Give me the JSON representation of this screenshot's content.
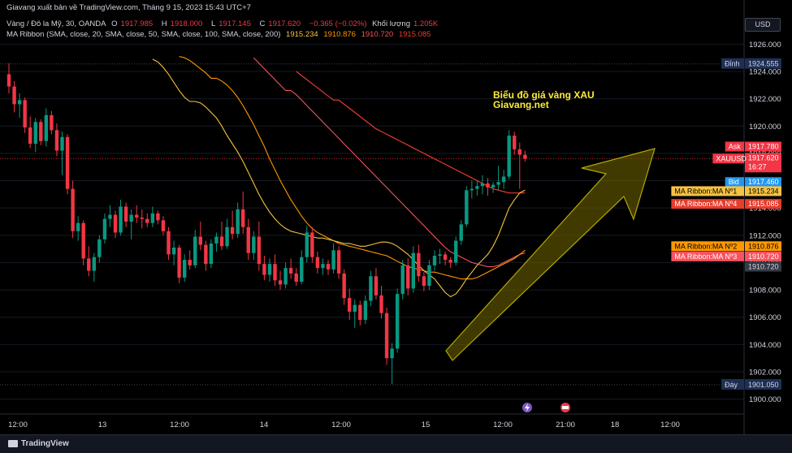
{
  "header": {
    "attribution": "Giavang xuất bản về TradingView.com, Tháng 9 15, 2023 15:43 UTC+7",
    "symbol": "Vàng / Đô la Mỹ, 30, OANDA",
    "o_label": "O",
    "o_value": "1917.985",
    "h_label": "H",
    "h_value": "1918.000",
    "l_label": "L",
    "l_value": "1917.145",
    "c_label": "C",
    "c_value": "1917.620",
    "change": "−0.365 (−0.02%)",
    "volume_label": "Khối lượng",
    "volume_value": "1.205K",
    "ribbon_label": "MA Ribbon (SMA, close, 20, SMA, close, 50, SMA, close, 100, SMA, close, 200)",
    "ribbon_values": [
      "1915.234",
      "1910.876",
      "1910.720",
      "1915.085"
    ]
  },
  "currency_button": "USD",
  "annotation": {
    "line1": "Biểu đồ giá vàng XAU",
    "line2": "Giavang.net"
  },
  "footer": {
    "brand": "TradingView"
  },
  "colors": {
    "up": "#089981",
    "down": "#f23645",
    "ma20": "#f6c343",
    "ma50": "#ff9800",
    "ma100": "#f7525f",
    "ma200": "#e83c2c",
    "arrow_fill": "#6b6000",
    "arrow_stroke": "#b5a800",
    "annotation": "#ffeb3b",
    "bid": "#2196f3",
    "ask": "#f23645"
  },
  "chart_data": {
    "type": "candlestick",
    "ylim": [
      1899.5,
      1926.5
    ],
    "y_ticks": [
      1900,
      1902,
      1904,
      1906,
      1908,
      1910,
      1912,
      1914,
      1916,
      1918,
      1920,
      1922,
      1924,
      1926
    ],
    "x_ticks": [
      "12:00",
      "13",
      "12:00",
      "14",
      "12:00",
      "15",
      "12:00",
      "21:00",
      "18",
      "12:00"
    ],
    "markers": [
      {
        "label": "Đỉnh",
        "value": "1924.555",
        "y": 1924.555
      },
      {
        "label": "Đáy",
        "value": "1901.050",
        "y": 1901.05
      }
    ],
    "price_labels": [
      {
        "label": "Ask",
        "value": "1917.780",
        "y": 1918.5,
        "kind": "ask"
      },
      {
        "label": "XAUUSD",
        "value": "1917.620",
        "y": 1917.62,
        "kind": "last",
        "sub": "16:27"
      },
      {
        "label": "Bid",
        "value": "1917.460",
        "y": 1915.9,
        "kind": "bid"
      },
      {
        "label": "MA Ribbon:MA Nº1",
        "value": "1915.234",
        "y": 1915.234,
        "kind": "ma20"
      },
      {
        "label": "MA Ribbon:MA Nº4",
        "value": "1915.085",
        "y": 1914.3,
        "kind": "ma200"
      },
      {
        "label": "MA Ribbon:MA Nº2",
        "value": "1910.876",
        "y": 1911.2,
        "kind": "ma50"
      },
      {
        "label": "MA Ribbon:MA Nº3",
        "value": "1910.720",
        "y": 1910.45,
        "kind": "ma100"
      },
      {
        "label": "",
        "value": "1910.720",
        "y": 1909.7,
        "kind": "plain"
      }
    ],
    "candles": [
      [
        1923.8,
        1924.6,
        1922.4,
        1922.9
      ],
      [
        1922.9,
        1923.3,
        1921.0,
        1921.6
      ],
      [
        1921.6,
        1922.4,
        1920.6,
        1921.9
      ],
      [
        1921.9,
        1922.1,
        1919.5,
        1919.9
      ],
      [
        1919.9,
        1920.7,
        1918.4,
        1918.7
      ],
      [
        1918.7,
        1920.6,
        1918.1,
        1920.3
      ],
      [
        1920.3,
        1920.5,
        1918.6,
        1918.9
      ],
      [
        1918.9,
        1921.3,
        1918.5,
        1920.8
      ],
      [
        1920.8,
        1921.1,
        1919.4,
        1919.7
      ],
      [
        1919.7,
        1920.2,
        1917.8,
        1918.2
      ],
      [
        1918.2,
        1919.6,
        1916.4,
        1919.2
      ],
      [
        1919.2,
        1919.4,
        1915.0,
        1915.4
      ],
      [
        1915.4,
        1916.0,
        1911.8,
        1912.3
      ],
      [
        1912.3,
        1913.4,
        1911.6,
        1912.9
      ],
      [
        1912.9,
        1913.1,
        1909.8,
        1910.3
      ],
      [
        1910.3,
        1911.2,
        1909.0,
        1909.4
      ],
      [
        1909.4,
        1910.7,
        1908.6,
        1910.4
      ],
      [
        1910.4,
        1912.0,
        1910.0,
        1911.7
      ],
      [
        1911.7,
        1913.6,
        1911.4,
        1913.2
      ],
      [
        1913.2,
        1914.2,
        1912.6,
        1913.5
      ],
      [
        1913.5,
        1913.8,
        1911.8,
        1912.2
      ],
      [
        1912.2,
        1914.6,
        1912.0,
        1914.1
      ],
      [
        1914.1,
        1914.4,
        1912.6,
        1913.0
      ],
      [
        1913.0,
        1913.9,
        1911.7,
        1913.5
      ],
      [
        1913.5,
        1914.2,
        1912.9,
        1913.3
      ],
      [
        1913.3,
        1913.9,
        1912.5,
        1913.2
      ],
      [
        1913.2,
        1913.6,
        1912.6,
        1912.9
      ],
      [
        1912.9,
        1914.1,
        1912.6,
        1913.6
      ],
      [
        1913.6,
        1913.8,
        1912.8,
        1913.1
      ],
      [
        1913.1,
        1913.4,
        1912.0,
        1912.3
      ],
      [
        1912.3,
        1912.6,
        1910.2,
        1910.6
      ],
      [
        1910.6,
        1911.6,
        1909.8,
        1911.1
      ],
      [
        1911.1,
        1911.3,
        1908.5,
        1908.9
      ],
      [
        1908.9,
        1910.6,
        1908.6,
        1910.2
      ],
      [
        1910.2,
        1910.9,
        1909.5,
        1909.8
      ],
      [
        1909.8,
        1912.4,
        1909.6,
        1911.9
      ],
      [
        1911.9,
        1913.0,
        1910.9,
        1911.3
      ],
      [
        1911.3,
        1911.6,
        1909.4,
        1909.9
      ],
      [
        1909.9,
        1911.7,
        1909.6,
        1911.4
      ],
      [
        1911.4,
        1912.2,
        1910.8,
        1911.9
      ],
      [
        1911.9,
        1913.0,
        1910.9,
        1911.2
      ],
      [
        1911.2,
        1913.2,
        1911.0,
        1912.6
      ],
      [
        1912.6,
        1913.8,
        1911.7,
        1912.1
      ],
      [
        1912.1,
        1914.4,
        1911.8,
        1913.9
      ],
      [
        1913.9,
        1915.2,
        1912.1,
        1912.6
      ],
      [
        1912.6,
        1913.2,
        1910.2,
        1910.7
      ],
      [
        1910.7,
        1912.3,
        1910.2,
        1911.9
      ],
      [
        1911.9,
        1913.0,
        1909.4,
        1909.9
      ],
      [
        1909.9,
        1910.5,
        1908.7,
        1909.1
      ],
      [
        1909.1,
        1910.3,
        1908.6,
        1909.9
      ],
      [
        1909.9,
        1910.6,
        1908.3,
        1908.7
      ],
      [
        1908.7,
        1909.4,
        1908.0,
        1908.4
      ],
      [
        1908.4,
        1910.0,
        1908.1,
        1909.6
      ],
      [
        1909.6,
        1910.3,
        1908.8,
        1909.2
      ],
      [
        1909.2,
        1909.6,
        1908.3,
        1908.6
      ],
      [
        1908.6,
        1910.9,
        1908.4,
        1910.4
      ],
      [
        1910.4,
        1912.7,
        1910.0,
        1912.2
      ],
      [
        1912.2,
        1912.6,
        1910.0,
        1910.4
      ],
      [
        1910.4,
        1910.8,
        1909.2,
        1909.6
      ],
      [
        1909.6,
        1910.3,
        1909.1,
        1909.9
      ],
      [
        1909.9,
        1910.2,
        1909.1,
        1909.5
      ],
      [
        1909.5,
        1911.4,
        1909.2,
        1910.9
      ],
      [
        1910.9,
        1911.2,
        1908.8,
        1909.2
      ],
      [
        1909.2,
        1909.5,
        1906.9,
        1907.4
      ],
      [
        1907.4,
        1908.1,
        1905.8,
        1906.4
      ],
      [
        1906.4,
        1907.3,
        1905.2,
        1906.9
      ],
      [
        1906.9,
        1907.2,
        1905.4,
        1905.8
      ],
      [
        1905.8,
        1907.6,
        1905.5,
        1907.2
      ],
      [
        1907.2,
        1909.4,
        1906.8,
        1909.0
      ],
      [
        1909.0,
        1909.6,
        1907.3,
        1907.6
      ],
      [
        1907.6,
        1908.3,
        1905.9,
        1906.3
      ],
      [
        1906.3,
        1906.7,
        1902.5,
        1903.0
      ],
      [
        1903.0,
        1904.1,
        1901.1,
        1903.7
      ],
      [
        1903.7,
        1908.1,
        1903.4,
        1907.7
      ],
      [
        1907.7,
        1910.2,
        1907.3,
        1909.8
      ],
      [
        1909.8,
        1910.3,
        1907.6,
        1908.1
      ],
      [
        1908.1,
        1911.2,
        1907.8,
        1910.7
      ],
      [
        1910.7,
        1911.3,
        1908.6,
        1909.0
      ],
      [
        1909.0,
        1909.3,
        1907.9,
        1908.3
      ],
      [
        1908.3,
        1910.2,
        1908.0,
        1909.8
      ],
      [
        1909.8,
        1910.9,
        1909.4,
        1910.5
      ],
      [
        1910.5,
        1911.0,
        1909.9,
        1910.6
      ],
      [
        1910.6,
        1910.8,
        1909.8,
        1910.2
      ],
      [
        1910.2,
        1910.4,
        1909.6,
        1910.0
      ],
      [
        1910.0,
        1911.9,
        1909.8,
        1911.6
      ],
      [
        1911.6,
        1913.1,
        1911.3,
        1912.8
      ],
      [
        1912.8,
        1915.6,
        1912.6,
        1915.3
      ],
      [
        1915.3,
        1916.0,
        1914.7,
        1915.4
      ],
      [
        1915.4,
        1916.0,
        1914.9,
        1915.6
      ],
      [
        1915.6,
        1916.4,
        1915.0,
        1915.8
      ],
      [
        1915.8,
        1916.2,
        1914.9,
        1915.5
      ],
      [
        1915.5,
        1915.9,
        1915.1,
        1915.7
      ],
      [
        1915.7,
        1917.1,
        1915.3,
        1915.9
      ],
      [
        1915.9,
        1916.8,
        1915.4,
        1916.3
      ],
      [
        1916.3,
        1919.7,
        1916.1,
        1919.3
      ],
      [
        1919.3,
        1919.6,
        1917.9,
        1918.3
      ],
      [
        1918.3,
        1918.8,
        1915.4,
        1917.9
      ],
      [
        1917.9,
        1918.2,
        1917.4,
        1917.6
      ]
    ],
    "ma20": [
      1921.8,
      1921.7,
      1921.4,
      1921.0,
      1920.6,
      1920.0,
      1919.3,
      1918.7,
      1918.1,
      1917.4,
      1916.6,
      1915.8,
      1915.0,
      1914.3,
      1913.7,
      1913.2,
      1912.8,
      1912.5,
      1912.3,
      1912.2,
      1912.1,
      1912.0,
      1911.9,
      1911.8,
      1911.8,
      1911.7,
      1911.6,
      1911.5,
      1911.4,
      1911.4,
      1911.3,
      1911.2,
      1911.2,
      1911.3,
      1911.4,
      1911.5,
      1911.5,
      1911.4,
      1911.2,
      1910.9,
      1910.6,
      1910.2,
      1909.8,
      1909.4,
      1909.1,
      1908.8,
      1908.3,
      1907.8,
      1907.5,
      1907.7,
      1908.2,
      1908.8,
      1909.3,
      1909.8,
      1910.2,
      1910.6,
      1911.2,
      1912.0,
      1913.0,
      1914.0,
      1914.6,
      1915.1,
      1915.3
    ],
    "ma20_start": 35,
    "ma50": [
      1923.5,
      1923.3,
      1923.0,
      1922.6,
      1922.1,
      1921.5,
      1920.8,
      1920.1,
      1919.3,
      1918.5,
      1917.6,
      1916.8,
      1916.0,
      1915.3,
      1914.6,
      1914.0,
      1913.4,
      1912.9,
      1912.5,
      1912.2,
      1912.0,
      1911.8,
      1911.6,
      1911.4,
      1911.3,
      1911.2,
      1911.1,
      1911.0,
      1910.9,
      1910.8,
      1910.7,
      1910.6,
      1910.5,
      1910.3,
      1910.1,
      1909.9,
      1909.7,
      1909.6,
      1909.5,
      1909.4,
      1909.3,
      1909.3,
      1909.2,
      1909.1,
      1909.0,
      1908.9,
      1908.8,
      1908.8,
      1908.8,
      1908.9,
      1909.1,
      1909.3,
      1909.5,
      1909.7,
      1909.9,
      1910.1,
      1910.3,
      1910.6,
      1910.9
    ],
    "ma50_start": 39,
    "ma100": [
      1922.6,
      1922.3,
      1921.9,
      1921.5,
      1921.1,
      1920.7,
      1920.3,
      1919.9,
      1919.5,
      1919.1,
      1918.7,
      1918.3,
      1917.9,
      1917.5,
      1917.1,
      1916.7,
      1916.3,
      1915.9,
      1915.5,
      1915.1,
      1914.7,
      1914.3,
      1913.9,
      1913.5,
      1913.1,
      1912.7,
      1912.3,
      1911.9,
      1911.5,
      1911.1,
      1910.8,
      1910.6,
      1910.4,
      1910.2,
      1910.0,
      1909.9,
      1909.8,
      1909.7,
      1909.7,
      1909.8,
      1910.0,
      1910.2,
      1910.4,
      1910.6,
      1910.7
    ],
    "ma100_start": 53,
    "ma200": [
      1921.9,
      1921.6,
      1921.3,
      1921.0,
      1920.7,
      1920.4,
      1920.1,
      1919.8,
      1919.6,
      1919.4,
      1919.2,
      1919.0,
      1918.8,
      1918.6,
      1918.4,
      1918.2,
      1918.0,
      1917.8,
      1917.6,
      1917.4,
      1917.2,
      1917.0,
      1916.8,
      1916.6,
      1916.4,
      1916.2,
      1916.0,
      1915.8,
      1915.6,
      1915.4,
      1915.3,
      1915.2,
      1915.1,
      1915.1,
      1915.1,
      1915.1
    ],
    "ma200_start": 62
  }
}
